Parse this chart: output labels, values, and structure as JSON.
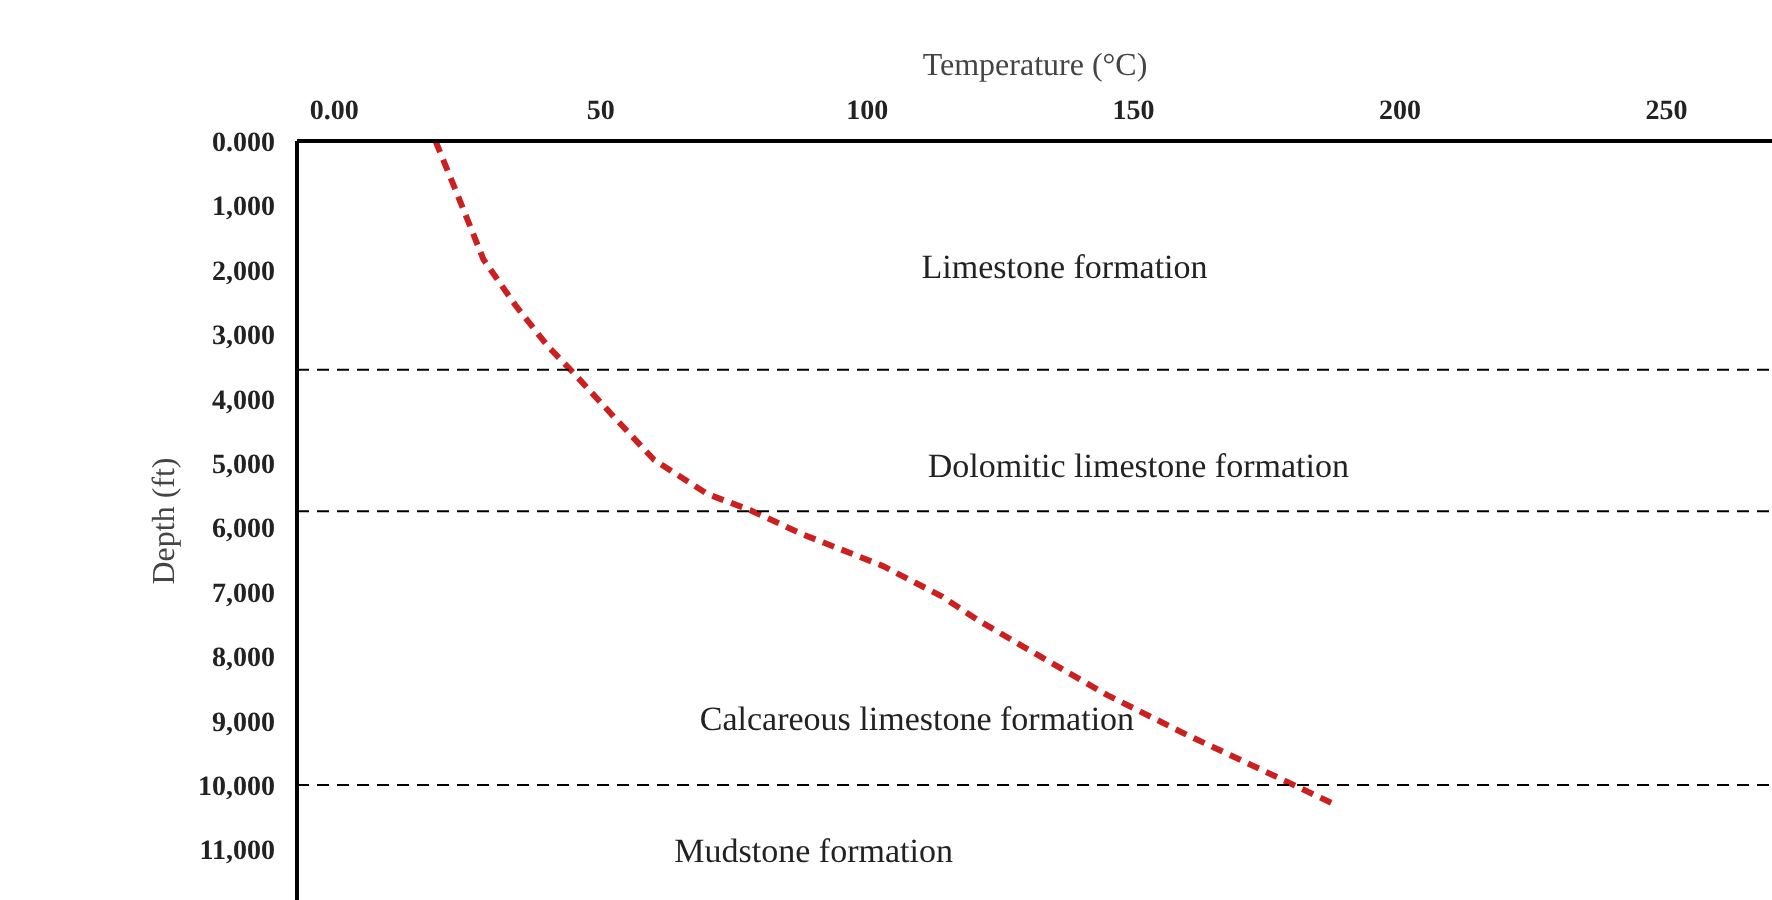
{
  "chart_data": {
    "type": "line",
    "xlabel": "Temperature (°C)",
    "ylabel": "Depth (ft)",
    "xlim": [
      -7,
      270
    ],
    "xticks": [
      {
        "value": 0,
        "label": "0.00"
      },
      50,
      100,
      150,
      200,
      250
    ],
    "ylim": [
      11800,
      0
    ],
    "yticks": [
      {
        "value": 0,
        "label": "0.000"
      },
      {
        "value": 1000,
        "label": "1,000"
      },
      {
        "value": 2000,
        "label": "2,000"
      },
      {
        "value": 3000,
        "label": "3,000"
      },
      {
        "value": 4000,
        "label": "4,000"
      },
      {
        "value": 5000,
        "label": "5,000"
      },
      {
        "value": 6000,
        "label": "6,000"
      },
      {
        "value": 7000,
        "label": "7,000"
      },
      {
        "value": 8000,
        "label": "8,000"
      },
      {
        "value": 9000,
        "label": "9,000"
      },
      {
        "value": 10000,
        "label": "10,000"
      },
      {
        "value": 11000,
        "label": "11,000"
      }
    ],
    "grid": false,
    "line_style": "dashed",
    "marker": "none",
    "series": [
      {
        "color": "#cc1f1f",
        "x": [
          19,
          23,
          28,
          34,
          40,
          45,
          53,
          60,
          70,
          78,
          88,
          103,
          114,
          121,
          132,
          145,
          160,
          176,
          188
        ],
        "values": [
          0,
          810,
          1840,
          2550,
          3180,
          3610,
          4330,
          4950,
          5480,
          5730,
          6110,
          6600,
          7070,
          7450,
          7980,
          8600,
          9220,
          9840,
          10310
        ]
      }
    ],
    "ref_lines": [
      {
        "axis": "y",
        "value": 3550,
        "color": "#000000",
        "line_style": "dashed"
      },
      {
        "axis": "y",
        "value": 5750,
        "color": "#000000",
        "line_style": "dashed"
      },
      {
        "axis": "y",
        "value": 10000,
        "color": "#000000",
        "line_style": "dashed"
      }
    ],
    "annotations": [
      "Limestone formation",
      "Dolomitic limestone formation",
      "Calcareous limestone formation",
      "Mudstone formation"
    ]
  }
}
